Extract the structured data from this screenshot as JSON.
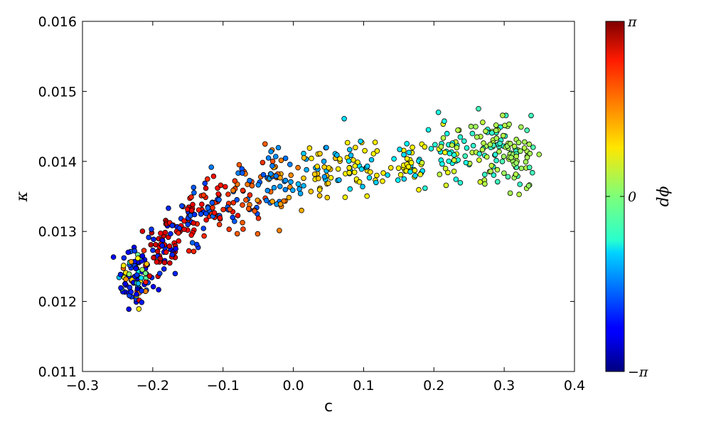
{
  "chart_data": {
    "type": "scatter",
    "xlabel": "c",
    "ylabel": "κ",
    "xlim": [
      -0.3,
      0.4
    ],
    "ylim": [
      0.011,
      0.016
    ],
    "xticks": [
      -0.3,
      -0.2,
      -0.1,
      0.0,
      0.1,
      0.2,
      0.3,
      0.4
    ],
    "xtick_labels": [
      "−0.3",
      "−0.2",
      "−0.1",
      "0.0",
      "0.1",
      "0.2",
      "0.3",
      "0.4"
    ],
    "yticks": [
      0.011,
      0.012,
      0.013,
      0.014,
      0.015,
      0.016
    ],
    "ytick_labels": [
      "0.011",
      "0.012",
      "0.013",
      "0.014",
      "0.015",
      "0.016"
    ],
    "grid": false,
    "colormap": "jet",
    "colorbar": {
      "label": "dϕ",
      "range": [
        -3.14159,
        3.14159
      ],
      "tick_labels": [
        "π",
        "0",
        "−π"
      ],
      "tick_values": [
        3.14159,
        0,
        -3.14159
      ]
    },
    "clusters": [
      {
        "c": -0.225,
        "k": 0.01235,
        "sc": 0.012,
        "sk": 0.00025,
        "n": 95,
        "dphi": [
          -2.9,
          2.5
        ],
        "alt": [
          -2.5,
          -1.9
        ]
      },
      {
        "c": -0.185,
        "k": 0.01275,
        "sc": 0.012,
        "sk": 0.00025,
        "n": 60,
        "dphi": [
          2.3,
          2.8
        ],
        "alt": [
          -2.4,
          -2.0
        ]
      },
      {
        "c": -0.145,
        "k": 0.01315,
        "sc": 0.015,
        "sk": 0.0002,
        "n": 55,
        "dphi": [
          2.1,
          2.6
        ],
        "alt": [
          -2.1,
          -1.7
        ]
      },
      {
        "c": -0.105,
        "k": 0.0134,
        "sc": 0.014,
        "sk": 0.0002,
        "n": 45,
        "dphi": [
          2.0,
          2.3
        ],
        "alt": [
          -2.0,
          -1.7
        ]
      },
      {
        "c": -0.065,
        "k": 0.01355,
        "sc": 0.018,
        "sk": 0.00025,
        "n": 50,
        "dphi": [
          1.6,
          2.1
        ],
        "alt": [
          -1.9,
          -1.5
        ]
      },
      {
        "c": -0.02,
        "k": 0.0137,
        "sc": 0.015,
        "sk": 0.00025,
        "n": 45,
        "dphi": [
          1.2,
          1.7
        ],
        "alt": [
          -1.7,
          -1.3
        ]
      },
      {
        "c": 0.035,
        "k": 0.0139,
        "sc": 0.015,
        "sk": 0.0002,
        "n": 45,
        "dphi": [
          0.9,
          1.2
        ],
        "alt": [
          -1.4,
          -1.1
        ]
      },
      {
        "c": 0.095,
        "k": 0.01395,
        "sc": 0.015,
        "sk": 0.00022,
        "n": 45,
        "dphi": [
          0.8,
          1.0
        ],
        "alt": [
          -1.2,
          -0.9
        ]
      },
      {
        "c": 0.16,
        "k": 0.0139,
        "sc": 0.017,
        "sk": 0.00022,
        "n": 40,
        "dphi": [
          0.7,
          0.9
        ],
        "alt": [
          -1.0,
          -0.8
        ]
      },
      {
        "c": 0.225,
        "k": 0.0141,
        "sc": 0.018,
        "sk": 0.00025,
        "n": 50,
        "dphi": [
          0.35,
          0.7
        ],
        "alt": [
          -0.7,
          -0.5
        ]
      },
      {
        "c": 0.285,
        "k": 0.0142,
        "sc": 0.02,
        "sk": 0.00025,
        "n": 65,
        "dphi": [
          0.2,
          0.4
        ],
        "alt": [
          -0.55,
          -0.35
        ]
      },
      {
        "c": 0.32,
        "k": 0.0141,
        "sc": 0.016,
        "sk": 0.00025,
        "n": 55,
        "dphi": [
          0.15,
          0.35
        ],
        "alt": [
          -0.45,
          -0.3
        ]
      }
    ]
  }
}
